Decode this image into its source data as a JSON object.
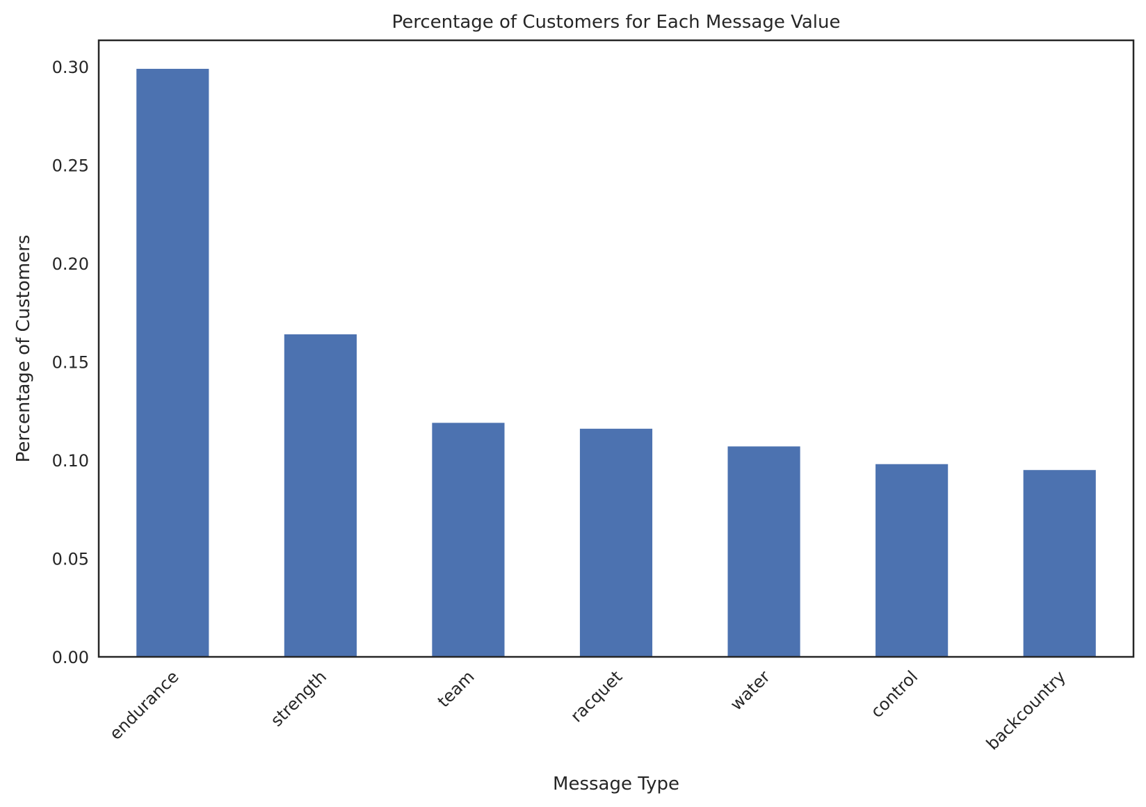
{
  "chart_data": {
    "type": "bar",
    "title": "Percentage of Customers for Each Message Value",
    "xlabel": "Message Type",
    "ylabel": "Percentage of Customers",
    "categories": [
      "endurance",
      "strength",
      "team",
      "racquet",
      "water",
      "control",
      "backcountry"
    ],
    "values": [
      0.299,
      0.164,
      0.119,
      0.116,
      0.107,
      0.098,
      0.095
    ],
    "ylim": [
      0,
      0.3135
    ],
    "yticks": [
      "0.00",
      "0.05",
      "0.10",
      "0.15",
      "0.20",
      "0.25",
      "0.30"
    ],
    "grid": false,
    "legend": "none",
    "bar_color": "#4c72b0",
    "axis_color": "#262626"
  }
}
